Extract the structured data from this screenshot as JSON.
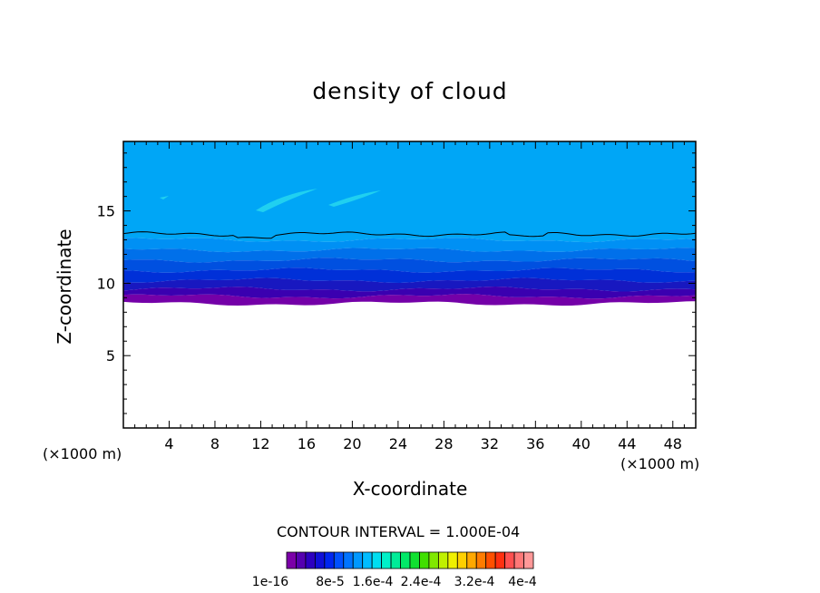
{
  "chart_data": {
    "type": "heatmap",
    "title": "density of cloud",
    "xlabel": "X-coordinate",
    "ylabel": "Z-coordinate",
    "x_unit": "(×1000 m)",
    "x_unit_right": "(×1000 m)",
    "xlim": [
      0,
      50
    ],
    "ylim": [
      0,
      19.8
    ],
    "x_ticks": [
      4,
      8,
      12,
      16,
      20,
      24,
      28,
      32,
      36,
      40,
      44,
      48
    ],
    "y_ticks": [
      5,
      10,
      15
    ],
    "contour_interval_text": "CONTOUR INTERVAL = 1.000E-04",
    "colorbar": {
      "colors": [
        "#7b00a8",
        "#5500b0",
        "#2d00c0",
        "#1010d8",
        "#0026f0",
        "#0050ff",
        "#0074ff",
        "#0098ff",
        "#00bcff",
        "#00ddf0",
        "#00f0c8",
        "#00ec98",
        "#00e868",
        "#10e030",
        "#40e000",
        "#80e800",
        "#c0f000",
        "#f0f000",
        "#ffd000",
        "#ffa800",
        "#ff7c00",
        "#ff5000",
        "#ff3010",
        "#ff5050",
        "#ff7878",
        "#ff9898"
      ],
      "labels": [
        "1e-16",
        "8e-5",
        "1.6e-4",
        "2.4e-4",
        "3.2e-4",
        "4e-4"
      ]
    },
    "bands": [
      {
        "z_min": 13.0,
        "z_max": 19.8,
        "color": "#00a6f6"
      },
      {
        "z_min": 12.3,
        "z_max": 13.0,
        "color": "#0090f4"
      },
      {
        "z_min": 11.6,
        "z_max": 12.3,
        "color": "#0070ea"
      },
      {
        "z_min": 10.9,
        "z_max": 11.6,
        "color": "#0050e0"
      },
      {
        "z_min": 10.2,
        "z_max": 10.9,
        "color": "#0030d8"
      },
      {
        "z_min": 9.6,
        "z_max": 10.2,
        "color": "#1818c0"
      },
      {
        "z_min": 9.1,
        "z_max": 9.6,
        "color": "#3a00b0"
      },
      {
        "z_min": 8.6,
        "z_max": 9.1,
        "color": "#7400a8"
      }
    ],
    "contour_line_z": 13.4
  }
}
